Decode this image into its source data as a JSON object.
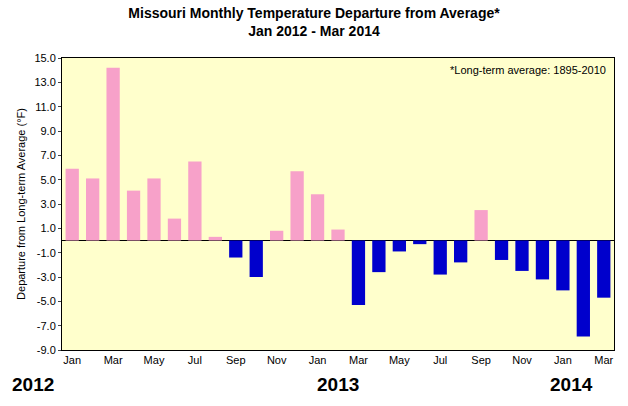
{
  "chart_data": {
    "type": "bar",
    "title": "Missouri Monthly Temperature Departure from Average*",
    "subtitle": "Jan 2012 - Mar 2014",
    "ylabel": "Departure from Long-term Average (°F)",
    "categories": [
      "Jan",
      null,
      "Mar",
      null,
      "May",
      null,
      "Jul",
      null,
      "Sep",
      null,
      "Nov",
      null,
      "Jan",
      null,
      "Mar",
      null,
      "May",
      null,
      "Jul",
      null,
      "Sep",
      null,
      "Nov",
      null,
      "Jan",
      null,
      "Mar"
    ],
    "values": [
      5.9,
      5.1,
      14.2,
      4.1,
      5.1,
      1.8,
      6.5,
      0.3,
      -1.4,
      -3.0,
      0.8,
      5.7,
      3.8,
      0.9,
      -5.3,
      -2.6,
      -0.9,
      -0.3,
      -2.8,
      -1.8,
      2.5,
      -1.6,
      -2.5,
      -3.2,
      -4.1,
      -7.9,
      -4.7
    ],
    "colors": [
      "#f7a1c9",
      "#f7a1c9",
      "#f7a1c9",
      "#f7a1c9",
      "#f7a1c9",
      "#f7a1c9",
      "#f7a1c9",
      "#f7a1c9",
      "#0000cc",
      "#0000cc",
      "#f7a1c9",
      "#f7a1c9",
      "#f7a1c9",
      "#f7a1c9",
      "#0000cc",
      "#0000cc",
      "#0000cc",
      "#0000cc",
      "#0000cc",
      "#0000cc",
      "#f7a1c9",
      "#0000cc",
      "#0000cc",
      "#0000cc",
      "#0000cc",
      "#0000cc",
      "#0000cc"
    ],
    "ylim": [
      -9,
      15
    ],
    "yticks": [
      {
        "value": 15,
        "label": "15.0"
      },
      {
        "value": 13,
        "label": "13.0"
      },
      {
        "value": 11,
        "label": "11.0"
      },
      {
        "value": 9,
        "label": "9.0"
      },
      {
        "value": 7,
        "label": "7.0"
      },
      {
        "value": 5,
        "label": "5.0"
      },
      {
        "value": 3,
        "label": "3.0"
      },
      {
        "value": 1,
        "label": "1.0"
      },
      {
        "value": -1,
        "label": "-1.0"
      },
      {
        "value": -3,
        "label": "-3.0"
      },
      {
        "value": -5,
        "label": "-5.0"
      },
      {
        "value": -7,
        "label": "-7.0"
      },
      {
        "value": -9,
        "label": "-9.0"
      }
    ],
    "grid": false,
    "annotations": [
      "*Long-term average: 1895-2010",
      "2012",
      "2013",
      "2014"
    ]
  }
}
